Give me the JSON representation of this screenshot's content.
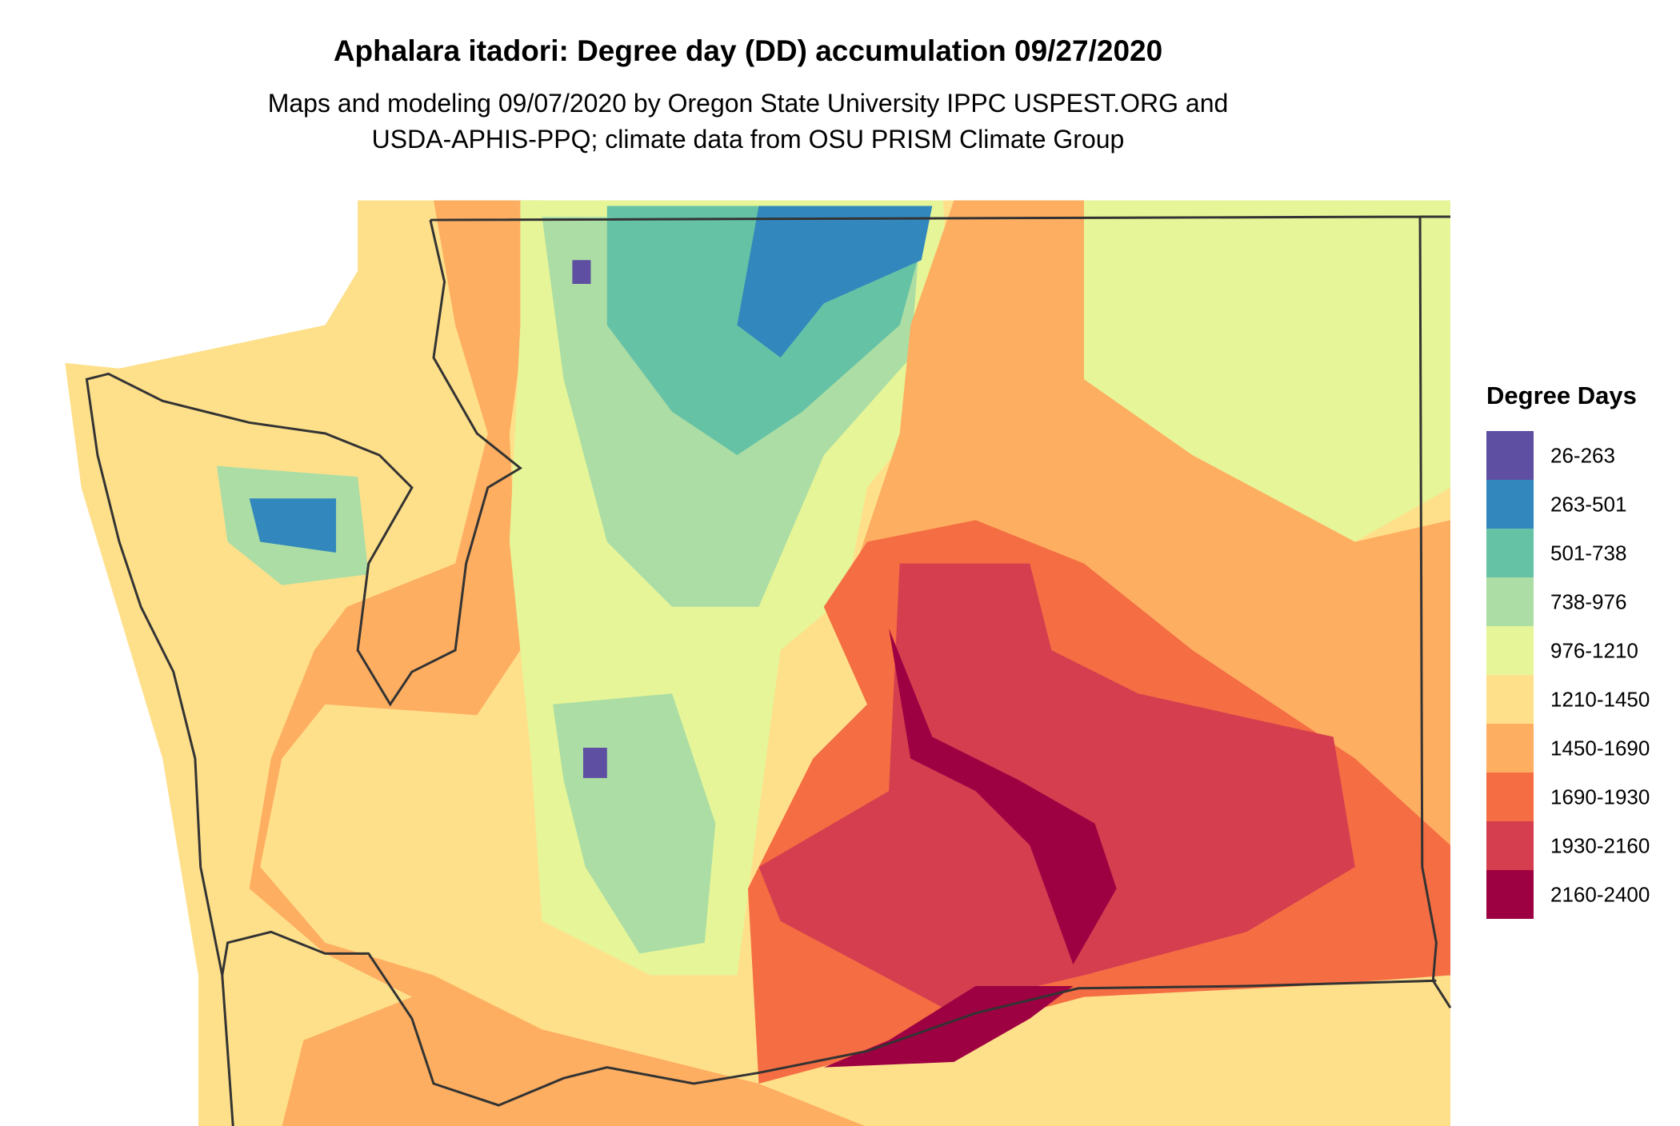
{
  "title": "Aphalara itadori: Degree day (DD) accumulation 09/27/2020",
  "subtitle": [
    "Maps and modeling 09/07/2020 by Oregon State University IPPC USPEST.ORG and",
    "USDA-APHIS-PPQ; climate data from OSU PRISM Climate Group"
  ],
  "legend": {
    "title": "Degree Days",
    "items": [
      {
        "label": "26-263",
        "color": "#5e4fa2"
      },
      {
        "label": "263-501",
        "color": "#3288bd"
      },
      {
        "label": "501-738",
        "color": "#66c2a5"
      },
      {
        "label": "738-976",
        "color": "#abdda4"
      },
      {
        "label": "976-1210",
        "color": "#e6f598"
      },
      {
        "label": "1210-1450",
        "color": "#fee08b"
      },
      {
        "label": "1450-1690",
        "color": "#fdae61"
      },
      {
        "label": "1690-1930",
        "color": "#f46d43"
      },
      {
        "label": "1930-2160",
        "color": "#d53e4f"
      },
      {
        "label": "2160-2400",
        "color": "#9e0142"
      }
    ]
  }
}
